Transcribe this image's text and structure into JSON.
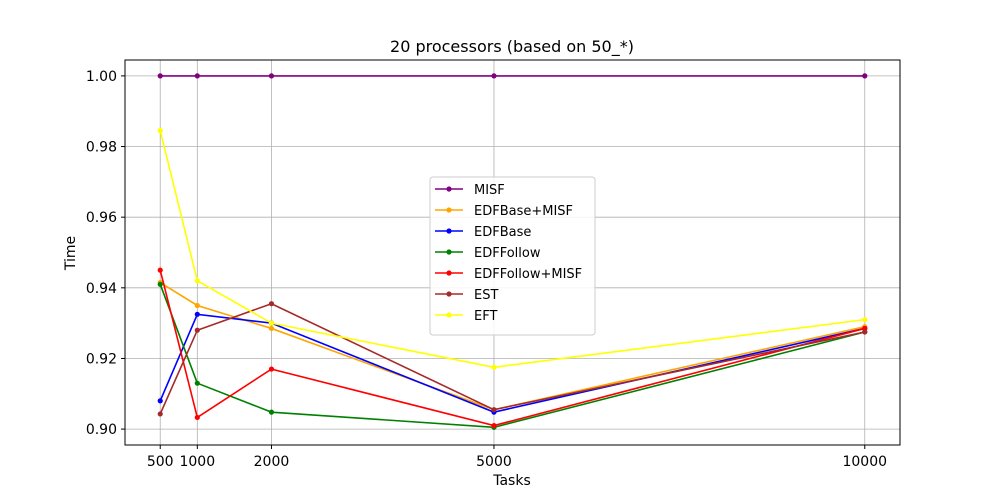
{
  "chart_data": {
    "type": "line",
    "title": "20 processors (based on 50_*)",
    "xlabel": "Tasks",
    "ylabel": "Time",
    "x": [
      500,
      1000,
      2000,
      5000,
      10000
    ],
    "xticks": [
      "500",
      "1000",
      "2000",
      "5000",
      "10000"
    ],
    "yticks": [
      "0.90",
      "0.92",
      "0.94",
      "0.96",
      "0.98",
      "1.00"
    ],
    "ytick_values": [
      0.9,
      0.92,
      0.94,
      0.96,
      0.98,
      1.0
    ],
    "xlim": [
      25,
      10475
    ],
    "ylim": [
      0.8955,
      1.0045
    ],
    "grid": true,
    "legend_position": "center",
    "series": [
      {
        "name": "MISF",
        "color": "#800080",
        "values": [
          1.0,
          1.0,
          1.0,
          1.0,
          1.0
        ]
      },
      {
        "name": "EDFBase+MISF",
        "color": "#ffa500",
        "values": [
          0.9415,
          0.935,
          0.9285,
          0.9055,
          0.929
        ]
      },
      {
        "name": "EDFBase",
        "color": "#0000ff",
        "values": [
          0.908,
          0.9325,
          0.93,
          0.9048,
          0.9285
        ]
      },
      {
        "name": "EDFFollow",
        "color": "#008000",
        "values": [
          0.941,
          0.913,
          0.9048,
          0.9005,
          0.9275
        ]
      },
      {
        "name": "EDFFollow+MISF",
        "color": "#ff0000",
        "values": [
          0.945,
          0.9033,
          0.917,
          0.901,
          0.9285
        ]
      },
      {
        "name": "EST",
        "color": "#a52a2a",
        "values": [
          0.9043,
          0.928,
          0.9355,
          0.9055,
          0.9275
        ]
      },
      {
        "name": "EFT",
        "color": "#ffff00",
        "values": [
          0.9845,
          0.942,
          0.93,
          0.9175,
          0.931
        ]
      }
    ]
  }
}
